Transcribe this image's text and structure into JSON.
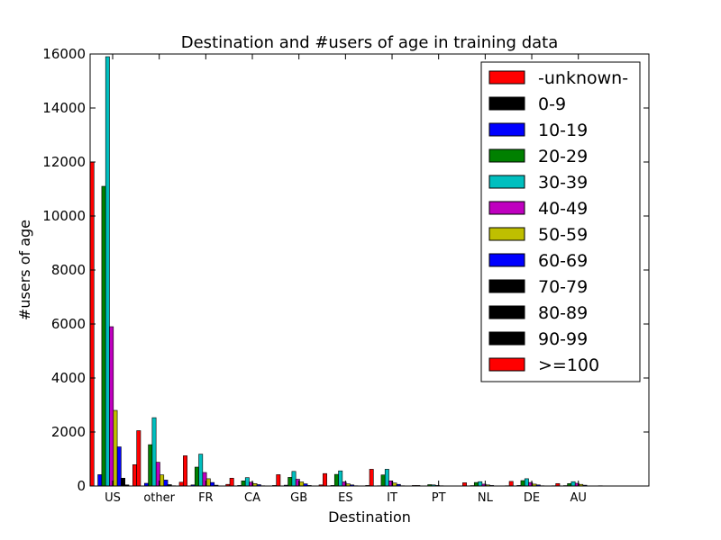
{
  "chart_data": {
    "type": "bar",
    "title": "Destination and #users of age in training data",
    "xlabel": "Destination",
    "ylabel": "#users of age",
    "ylim": [
      0,
      16000
    ],
    "yticks": [
      0,
      2000,
      4000,
      6000,
      8000,
      10000,
      12000,
      14000,
      16000
    ],
    "categories": [
      "US",
      "other",
      "FR",
      "CA",
      "GB",
      "ES",
      "IT",
      "PT",
      "NL",
      "DE",
      "AU"
    ],
    "legend_position": "top-right",
    "grid": false,
    "series": [
      {
        "name": "-unknown-",
        "color": "#ff0000",
        "values": [
          12000,
          2050,
          1120,
          290,
          420,
          460,
          620,
          20,
          120,
          170,
          90
        ]
      },
      {
        "name": "0-9",
        "color": "#000000",
        "values": [
          0,
          0,
          0,
          0,
          0,
          0,
          0,
          0,
          0,
          0,
          0
        ]
      },
      {
        "name": "10-19",
        "color": "#0000ff",
        "values": [
          420,
          100,
          40,
          20,
          30,
          20,
          10,
          5,
          15,
          20,
          15
        ]
      },
      {
        "name": "20-29",
        "color": "#008000",
        "values": [
          11100,
          1530,
          700,
          190,
          320,
          430,
          410,
          50,
          130,
          200,
          90
        ]
      },
      {
        "name": "30-39",
        "color": "#00bfbf",
        "values": [
          15900,
          2530,
          1180,
          310,
          540,
          560,
          620,
          40,
          160,
          270,
          160
        ]
      },
      {
        "name": "40-49",
        "color": "#bf00bf",
        "values": [
          5900,
          880,
          500,
          140,
          250,
          150,
          190,
          20,
          70,
          130,
          100
        ]
      },
      {
        "name": "50-59",
        "color": "#bfbf00",
        "values": [
          2800,
          410,
          270,
          90,
          150,
          80,
          110,
          10,
          40,
          70,
          60
        ]
      },
      {
        "name": "60-69",
        "color": "#0000ff",
        "values": [
          1450,
          220,
          130,
          50,
          80,
          40,
          60,
          5,
          20,
          40,
          30
        ]
      },
      {
        "name": "70-79",
        "color": "#000000",
        "values": [
          290,
          50,
          30,
          10,
          20,
          10,
          10,
          0,
          5,
          10,
          5
        ]
      },
      {
        "name": "80-89",
        "color": "#000000",
        "values": [
          40,
          10,
          5,
          0,
          5,
          0,
          0,
          0,
          0,
          0,
          0
        ]
      },
      {
        "name": "90-99",
        "color": "#000000",
        "values": [
          0,
          0,
          0,
          0,
          0,
          0,
          0,
          0,
          0,
          0,
          0
        ]
      },
      {
        "name": ">=100",
        "color": "#ff0000",
        "values": [
          790,
          140,
          60,
          20,
          40,
          20,
          20,
          5,
          10,
          10,
          10
        ]
      }
    ]
  }
}
